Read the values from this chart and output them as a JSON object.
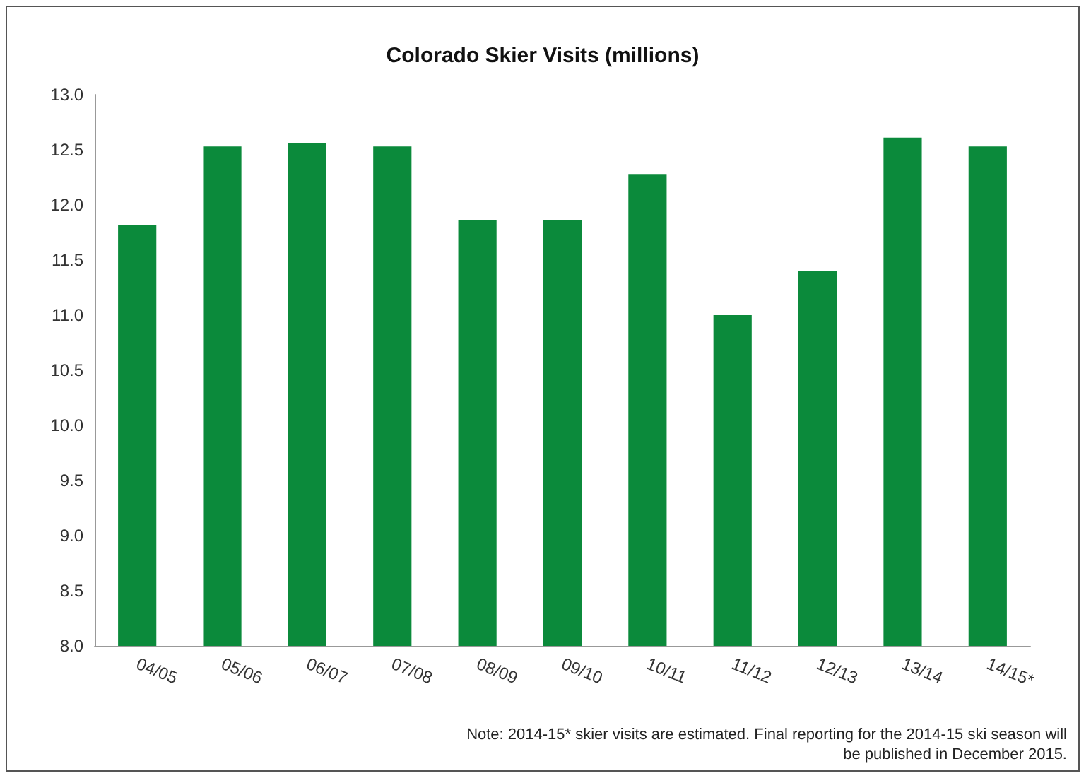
{
  "chart_data": {
    "type": "bar",
    "title": "Colorado Skier Visits (millions)",
    "categories": [
      "04/05",
      "05/06",
      "06/07",
      "07/08",
      "08/09",
      "09/10",
      "10/11",
      "11/12",
      "12/13",
      "13/14",
      "14/15*"
    ],
    "values": [
      11.82,
      12.53,
      12.56,
      12.53,
      11.86,
      11.86,
      12.28,
      11.0,
      11.4,
      12.61,
      12.53
    ],
    "color": "#0b8a3b",
    "ylim": [
      8,
      13
    ],
    "yticks": [
      {
        "value": 8,
        "label": "8.0"
      },
      {
        "value": 8.5,
        "label": "8.5"
      },
      {
        "value": 9,
        "label": "9.0"
      },
      {
        "value": 9.5,
        "label": "9.5"
      },
      {
        "value": 10,
        "label": "10.0"
      },
      {
        "value": 10.5,
        "label": "10.5"
      },
      {
        "value": 11,
        "label": "11.0"
      },
      {
        "value": 11.5,
        "label": "11.5"
      },
      {
        "value": 12,
        "label": "12.0"
      },
      {
        "value": 12.5,
        "label": "12.5"
      },
      {
        "value": 13,
        "label": "13.0"
      }
    ],
    "grid": false,
    "annotations": [
      "Note: 2014-15* skier visits are estimated. Final reporting for the 2014-15 ski season will be published in December 2015."
    ]
  }
}
